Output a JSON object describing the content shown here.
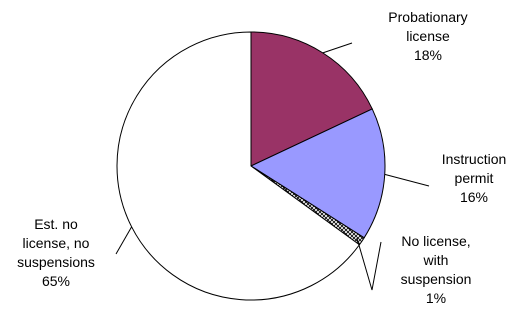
{
  "chart_data": {
    "type": "pie",
    "title": "",
    "start_angle_deg": 0,
    "direction": "clockwise",
    "slices": [
      {
        "label_lines": [
          "Probationary",
          "license",
          "18%"
        ],
        "value": 18,
        "color": "#993366",
        "pattern": "solid"
      },
      {
        "label_lines": [
          "Instruction",
          "permit",
          "16%"
        ],
        "value": 16,
        "color": "#9999FF",
        "pattern": "solid"
      },
      {
        "label_lines": [
          "No license,",
          "with",
          "suspension",
          "1%"
        ],
        "value": 1,
        "color": "#FFFFFF",
        "pattern": "crosshatch"
      },
      {
        "label_lines": [
          "Est. no",
          "license, no",
          "suspensions",
          "65%"
        ],
        "value": 65,
        "color": "#FFFFFF",
        "pattern": "solid"
      }
    ]
  }
}
